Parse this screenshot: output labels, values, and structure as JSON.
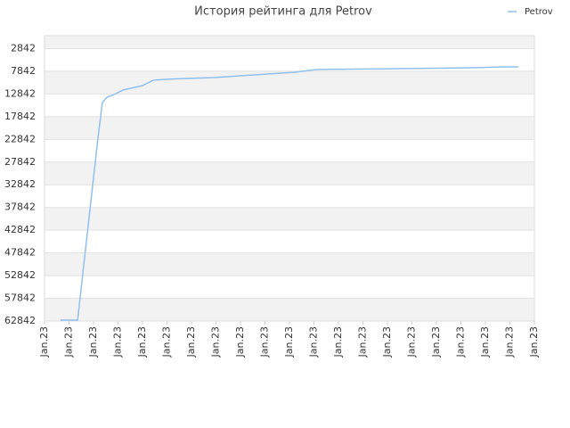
{
  "chart_data": {
    "type": "line",
    "title": "История рейтинга для Petrov",
    "x": [
      0.65,
      1.35,
      2.18,
      2.36,
      2.55,
      2.84,
      3.2,
      4.0,
      4.44,
      4.9,
      5.8,
      6.9,
      8.0,
      9.1,
      10.2,
      11.1,
      12.7,
      14.5,
      17.45,
      18.7,
      19.35
    ],
    "series": [
      {
        "name": "Petrov",
        "color": "#90c0f0",
        "values": [
          62650,
          62650,
          22590,
          14730,
          13550,
          12960,
          11980,
          11000,
          9820,
          9620,
          9430,
          9230,
          8840,
          8450,
          8050,
          7460,
          7360,
          7270,
          7070,
          6870,
          6870
        ]
      }
    ],
    "ylim": [
      62842,
      0
    ],
    "yticks": [
      2842,
      7842,
      12842,
      17842,
      22842,
      27842,
      32842,
      37842,
      42842,
      47842,
      52842,
      57842,
      62842
    ],
    "xlim": [
      0,
      20
    ],
    "xticks": [
      {
        "value": 0,
        "label": "Jan.23"
      },
      {
        "value": 1,
        "label": "Jan.23"
      },
      {
        "value": 2,
        "label": "Jan.23"
      },
      {
        "value": 3,
        "label": "Jan.23"
      },
      {
        "value": 4,
        "label": "Jan.23"
      },
      {
        "value": 5,
        "label": "Jan.23"
      },
      {
        "value": 6,
        "label": "Jan.23"
      },
      {
        "value": 7,
        "label": "Jan.23"
      },
      {
        "value": 8,
        "label": "Jan.23"
      },
      {
        "value": 9,
        "label": "Jan.23"
      },
      {
        "value": 10,
        "label": "Jan.23"
      },
      {
        "value": 11,
        "label": "Jan.23"
      },
      {
        "value": 12,
        "label": "Jan.23"
      },
      {
        "value": 13,
        "label": "Jan.23"
      },
      {
        "value": 14,
        "label": "Jan.23"
      },
      {
        "value": 15,
        "label": "Jan.23"
      },
      {
        "value": 16,
        "label": "Jan.23"
      },
      {
        "value": 17,
        "label": "Jan.23"
      },
      {
        "value": 18,
        "label": "Jan.23"
      },
      {
        "value": 19,
        "label": "Jan.23"
      },
      {
        "value": 20,
        "label": "Jan.23"
      }
    ],
    "grid": true,
    "legend": "top-right"
  }
}
